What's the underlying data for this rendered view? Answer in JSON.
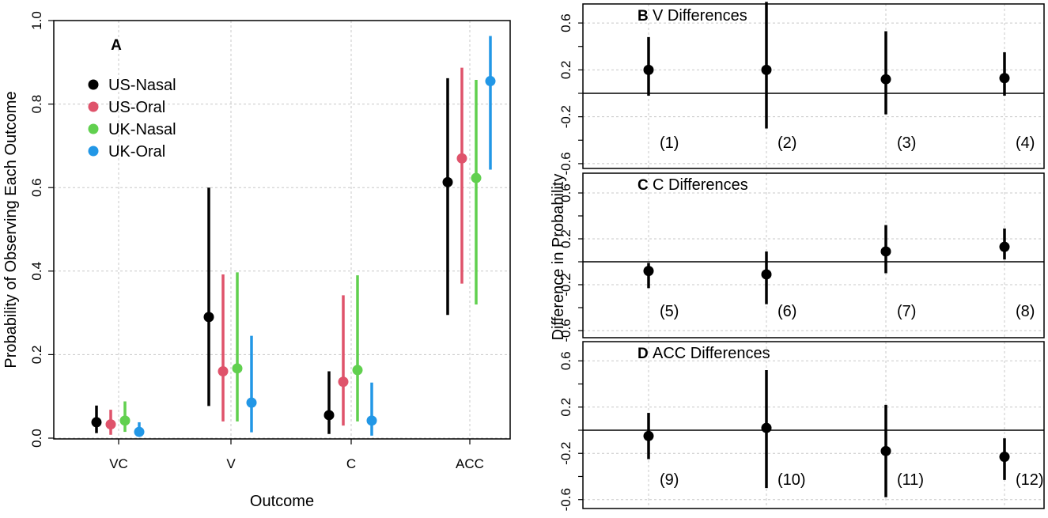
{
  "chart_data": [
    {
      "panel": "A",
      "type": "scatter",
      "title": "",
      "xlabel": "Outcome",
      "ylabel": "Probability of Observing Each Outcome",
      "categories": [
        "VC",
        "V",
        "C",
        "ACC"
      ],
      "ylim": [
        0,
        1.0
      ],
      "yticks": [
        "0.0",
        "0.2",
        "0.4",
        "0.6",
        "0.8",
        "1.0"
      ],
      "legend": "top-left",
      "series": [
        {
          "name": "US-Nasal",
          "color": "#000000",
          "values": [
            0.038,
            0.29,
            0.055,
            0.613
          ],
          "lower": [
            0.012,
            0.077,
            0.01,
            0.295
          ],
          "upper": [
            0.078,
            0.6,
            0.16,
            0.862
          ]
        },
        {
          "name": "US-Oral",
          "color": "#DF536B",
          "values": [
            0.033,
            0.16,
            0.135,
            0.67
          ],
          "lower": [
            0.008,
            0.04,
            0.03,
            0.37
          ],
          "upper": [
            0.068,
            0.392,
            0.342,
            0.887
          ]
        },
        {
          "name": "UK-Nasal",
          "color": "#61D04F",
          "values": [
            0.042,
            0.167,
            0.163,
            0.623
          ],
          "lower": [
            0.015,
            0.04,
            0.04,
            0.32
          ],
          "upper": [
            0.088,
            0.397,
            0.39,
            0.858
          ]
        },
        {
          "name": "UK-Oral",
          "color": "#2297E6",
          "values": [
            0.015,
            0.085,
            0.042,
            0.855
          ],
          "lower": [
            0.004,
            0.014,
            0.006,
            0.643
          ],
          "upper": [
            0.038,
            0.245,
            0.133,
            0.963
          ]
        }
      ]
    },
    {
      "panel": "B",
      "type": "scatter",
      "title": "V Differences",
      "ylim": [
        -0.7,
        0.75
      ],
      "yticks": [
        "-0.6",
        "-0.2",
        "0.2",
        "0.6"
      ],
      "labels": [
        "(1)",
        "(2)",
        "(3)",
        "(4)"
      ],
      "values": [
        0.2,
        0.2,
        0.12,
        0.13
      ],
      "lower": [
        -0.02,
        -0.3,
        -0.18,
        -0.02
      ],
      "upper": [
        0.48,
        0.78,
        0.53,
        0.35
      ]
    },
    {
      "panel": "C",
      "type": "scatter",
      "title": "C Differences",
      "ylim": [
        -0.7,
        0.75
      ],
      "yticks": [
        "-0.6",
        "-0.2",
        "0.2",
        "0.6"
      ],
      "labels": [
        "(5)",
        "(6)",
        "(7)",
        "(8)"
      ],
      "values": [
        -0.08,
        -0.11,
        0.09,
        0.13
      ],
      "lower": [
        -0.23,
        -0.37,
        -0.1,
        0.02
      ],
      "upper": [
        -0.01,
        0.09,
        0.32,
        0.29
      ]
    },
    {
      "panel": "D",
      "type": "scatter",
      "title": "ACC Differences",
      "ylim": [
        -0.7,
        0.75
      ],
      "yticks": [
        "-0.6",
        "-0.2",
        "0.2",
        "0.6"
      ],
      "labels": [
        "(9)",
        "(10)",
        "(11)",
        "(12)"
      ],
      "values": [
        -0.05,
        0.02,
        -0.18,
        -0.23
      ],
      "lower": [
        -0.25,
        -0.5,
        -0.58,
        -0.43
      ],
      "upper": [
        0.15,
        0.52,
        0.22,
        -0.07
      ]
    }
  ],
  "shared": {
    "right_ylabel": "Difference in Probability",
    "gridlines": true
  }
}
